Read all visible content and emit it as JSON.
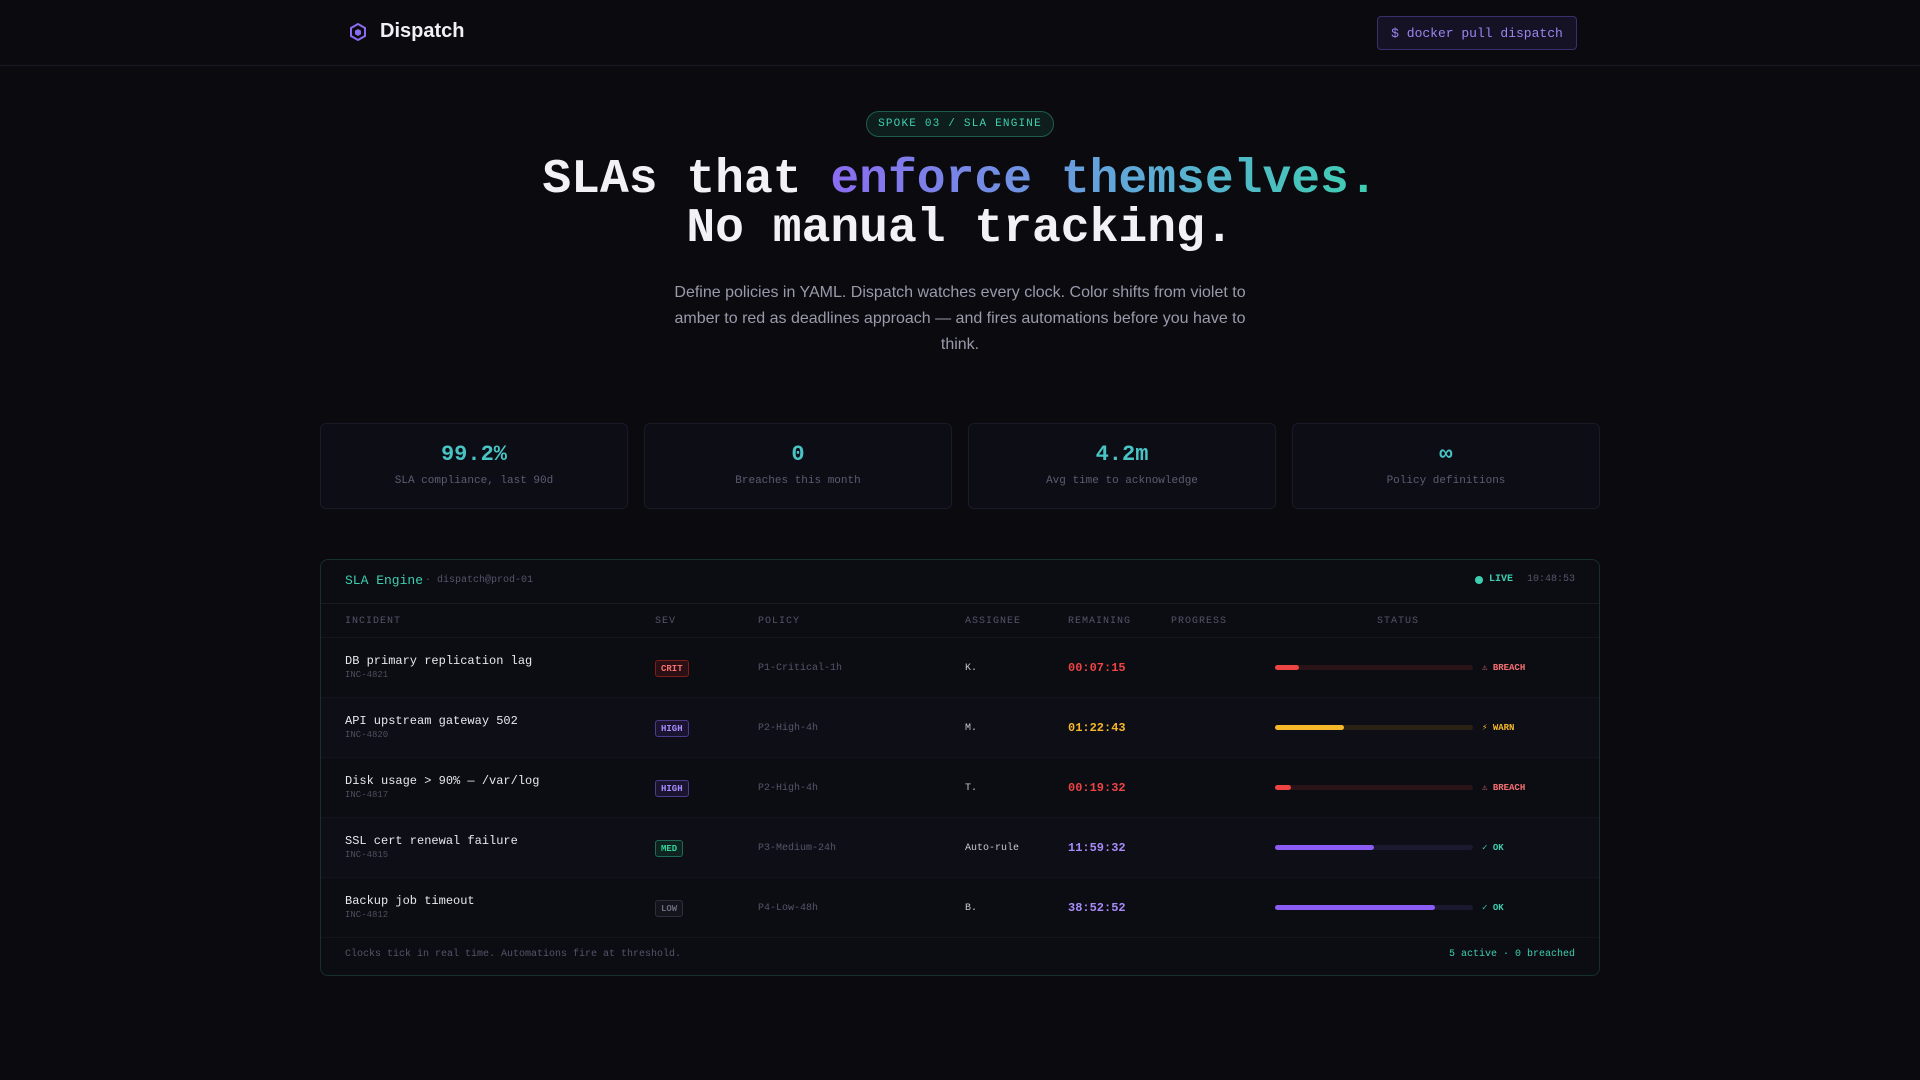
{
  "header": {
    "brand": "Dispatch",
    "brand_icon": "hexagon-logo-icon",
    "cta": "$ docker pull dispatch"
  },
  "hero": {
    "badge": "SPOKE 03 / SLA ENGINE",
    "headline_part1": "SLAs that ",
    "headline_highlight": "enforce themselves.",
    "headline_line2": "No manual tracking.",
    "subtitle": "Define policies in YAML. Dispatch watches every clock. Color shifts from violet to amber to red as deadlines approach — and fires automations before you have to think."
  },
  "stats": [
    {
      "value": "99.2%",
      "label": "SLA compliance, last 90d"
    },
    {
      "value": "0",
      "label": "Breaches this month"
    },
    {
      "value": "4.2m",
      "label": "Avg time to acknowledge"
    },
    {
      "value": "∞",
      "label": "Policy definitions"
    }
  ],
  "panel": {
    "title": "SLA Engine",
    "subtitle": "· dispatch@prod-01",
    "live_label": "LIVE",
    "live_time": "10:48:53",
    "columns": [
      "INCIDENT",
      "SEV",
      "POLICY",
      "ASSIGNEE",
      "REMAINING",
      "PROGRESS",
      "STATUS"
    ],
    "rows": [
      {
        "title": "DB primary replication lag",
        "id": "INC-4821",
        "sev": "CRIT",
        "policy": "P1-Critical-1h",
        "assignee": "K.",
        "remaining": "00:07:15",
        "progress": 0.12,
        "status": "⚠ BREACH",
        "tone": "red"
      },
      {
        "title": "API upstream gateway 502",
        "id": "INC-4820",
        "sev": "HIGH",
        "policy": "P2-High-4h",
        "assignee": "M.",
        "remaining": "01:22:43",
        "progress": 0.35,
        "status": "⚡ WARN",
        "tone": "amber"
      },
      {
        "title": "Disk usage > 90% — /var/log",
        "id": "INC-4817",
        "sev": "HIGH",
        "policy": "P2-High-4h",
        "assignee": "T.",
        "remaining": "00:19:32",
        "progress": 0.08,
        "status": "⚠ BREACH",
        "tone": "red"
      },
      {
        "title": "SSL cert renewal failure",
        "id": "INC-4815",
        "sev": "MED",
        "policy": "P3-Medium-24h",
        "assignee": "Auto-rule",
        "remaining": "11:59:32",
        "progress": 0.5,
        "status": "✓ OK",
        "tone": "violet"
      },
      {
        "title": "Backup job timeout",
        "id": "INC-4812",
        "sev": "LOW",
        "policy": "P4-Low-48h",
        "assignee": "B.",
        "remaining": "38:52:52",
        "progress": 0.81,
        "status": "✓ OK",
        "tone": "violet"
      }
    ],
    "footer_left": "Clocks tick in real time. Automations fire at threshold.",
    "footer_right": "5 active · 0 breached"
  },
  "colors": {
    "red": "#ef4444",
    "amber": "#f5b829",
    "violet": "#8b5cf6",
    "teal": "#3ecfb0"
  }
}
